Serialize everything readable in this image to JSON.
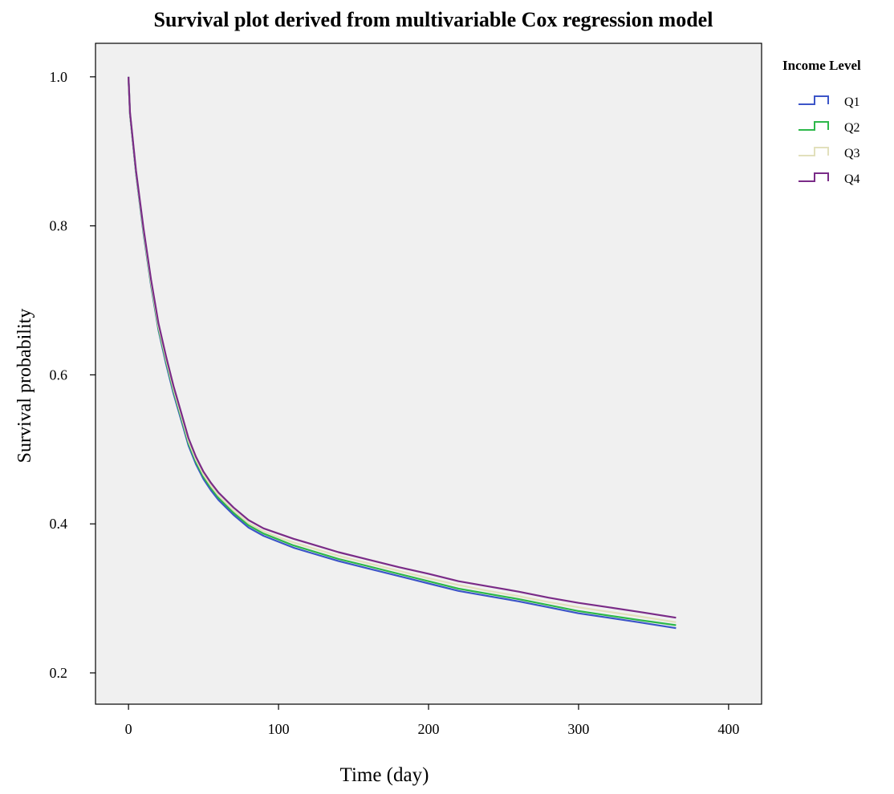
{
  "chart_data": {
    "type": "line",
    "title": "Survival plot derived from multivariable Cox regression model",
    "xlabel": "Time (day)",
    "ylabel": "Survival probability",
    "xlim": [
      -22,
      422
    ],
    "ylim": [
      0.158,
      1.045
    ],
    "xticks": [
      0,
      100,
      200,
      300,
      400
    ],
    "xtick_labels": [
      "0",
      "100",
      "200",
      "300",
      "400"
    ],
    "yticks": [
      0.2,
      0.4,
      0.6,
      0.8,
      1.0
    ],
    "ytick_labels": [
      "0.2",
      "0.4",
      "0.6",
      "0.8",
      "1.0"
    ],
    "grid": false,
    "plot_background": "#f0f0f0",
    "legend": {
      "title": "Income Level",
      "placement": "right-outside-top"
    },
    "x": [
      0,
      1,
      5,
      10,
      15,
      20,
      25,
      30,
      35,
      40,
      45,
      50,
      55,
      60,
      70,
      80,
      90,
      100,
      110,
      120,
      140,
      160,
      180,
      200,
      220,
      240,
      260,
      280,
      300,
      320,
      340,
      365
    ],
    "series": [
      {
        "name": "Q1",
        "color": "#3c55c8",
        "values": [
          1.0,
          0.95,
          0.87,
          0.79,
          0.72,
          0.66,
          0.615,
          0.575,
          0.54,
          0.505,
          0.48,
          0.46,
          0.445,
          0.432,
          0.412,
          0.395,
          0.384,
          0.376,
          0.368,
          0.362,
          0.35,
          0.34,
          0.33,
          0.32,
          0.31,
          0.303,
          0.296,
          0.288,
          0.28,
          0.274,
          0.268,
          0.26
        ]
      },
      {
        "name": "Q2",
        "color": "#2db84a",
        "values": [
          1.0,
          0.95,
          0.871,
          0.792,
          0.722,
          0.662,
          0.618,
          0.578,
          0.543,
          0.508,
          0.483,
          0.463,
          0.448,
          0.435,
          0.415,
          0.398,
          0.387,
          0.379,
          0.371,
          0.365,
          0.353,
          0.343,
          0.333,
          0.323,
          0.313,
          0.306,
          0.299,
          0.291,
          0.283,
          0.277,
          0.271,
          0.264
        ]
      },
      {
        "name": "Q3",
        "color": "#e2e0bc",
        "values": [
          1.0,
          0.951,
          0.872,
          0.794,
          0.724,
          0.665,
          0.621,
          0.581,
          0.546,
          0.511,
          0.486,
          0.466,
          0.451,
          0.438,
          0.418,
          0.401,
          0.39,
          0.382,
          0.375,
          0.369,
          0.357,
          0.347,
          0.337,
          0.327,
          0.318,
          0.31,
          0.303,
          0.295,
          0.288,
          0.282,
          0.276,
          0.268
        ]
      },
      {
        "name": "Q4",
        "color": "#7a2b87",
        "values": [
          1.0,
          0.952,
          0.874,
          0.797,
          0.728,
          0.669,
          0.625,
          0.585,
          0.55,
          0.515,
          0.49,
          0.47,
          0.455,
          0.442,
          0.422,
          0.405,
          0.394,
          0.387,
          0.38,
          0.374,
          0.362,
          0.352,
          0.342,
          0.333,
          0.323,
          0.316,
          0.309,
          0.301,
          0.294,
          0.288,
          0.282,
          0.274
        ]
      }
    ]
  }
}
